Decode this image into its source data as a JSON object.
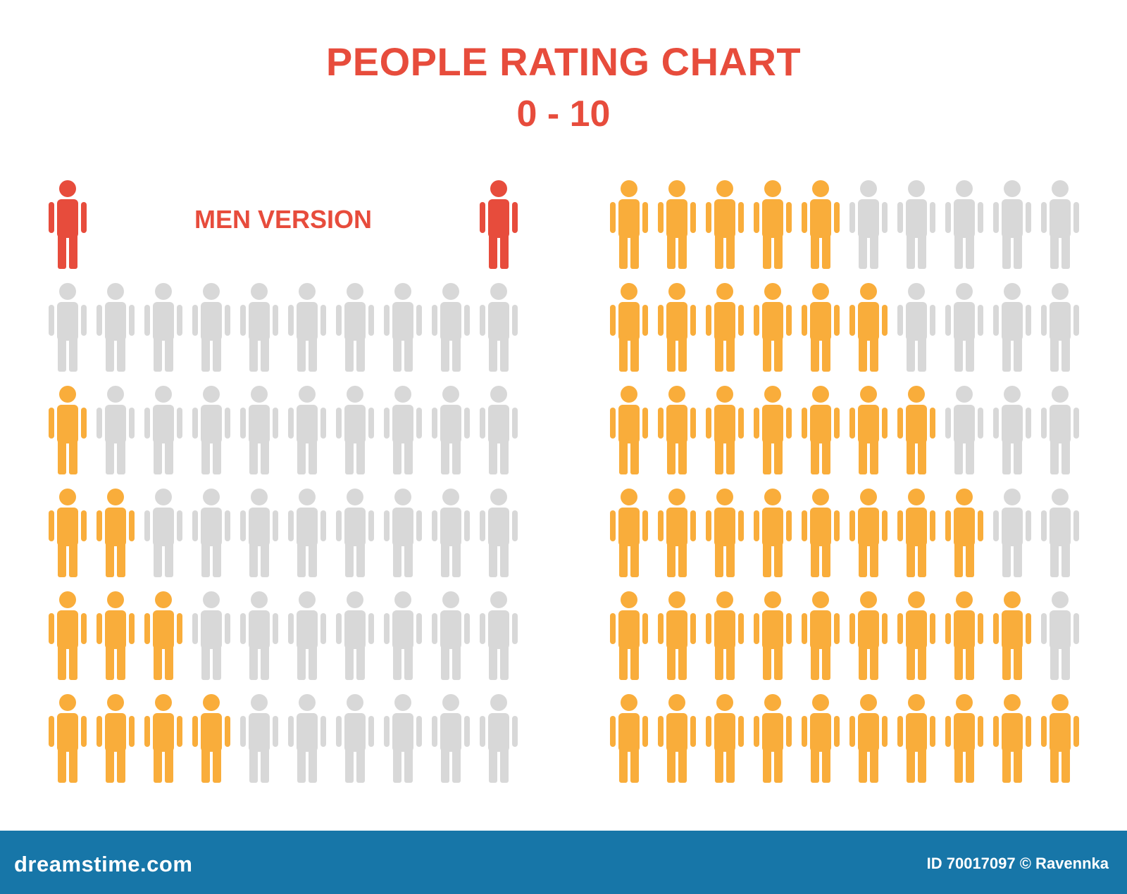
{
  "header": {
    "title_line1": "PEOPLE RATING CHART",
    "title_line2": "0 - 10"
  },
  "legend": {
    "label": "MEN VERSION"
  },
  "colors": {
    "title": "#e74c3c",
    "marker": "#e74c3c",
    "filled": "#f9ad3b",
    "empty": "#d8d8d8",
    "footer": "#1776a8"
  },
  "icons": {
    "person": "person-icon"
  },
  "chart_data": {
    "type": "pictogram",
    "scale": "0 - 10",
    "icons_per_row": 10,
    "rows": [
      {
        "rating": 0,
        "filled": 0
      },
      {
        "rating": 1,
        "filled": 1
      },
      {
        "rating": 2,
        "filled": 2
      },
      {
        "rating": 3,
        "filled": 3
      },
      {
        "rating": 4,
        "filled": 4
      },
      {
        "rating": 5,
        "filled": 5
      },
      {
        "rating": 6,
        "filled": 6
      },
      {
        "rating": 7,
        "filled": 7
      },
      {
        "rating": 8,
        "filled": 8
      },
      {
        "rating": 9,
        "filled": 9
      },
      {
        "rating": 10,
        "filled": 10
      }
    ]
  },
  "footer": {
    "site": "dreamstime.com",
    "credit": "ID 70017097 © Ravennka"
  }
}
